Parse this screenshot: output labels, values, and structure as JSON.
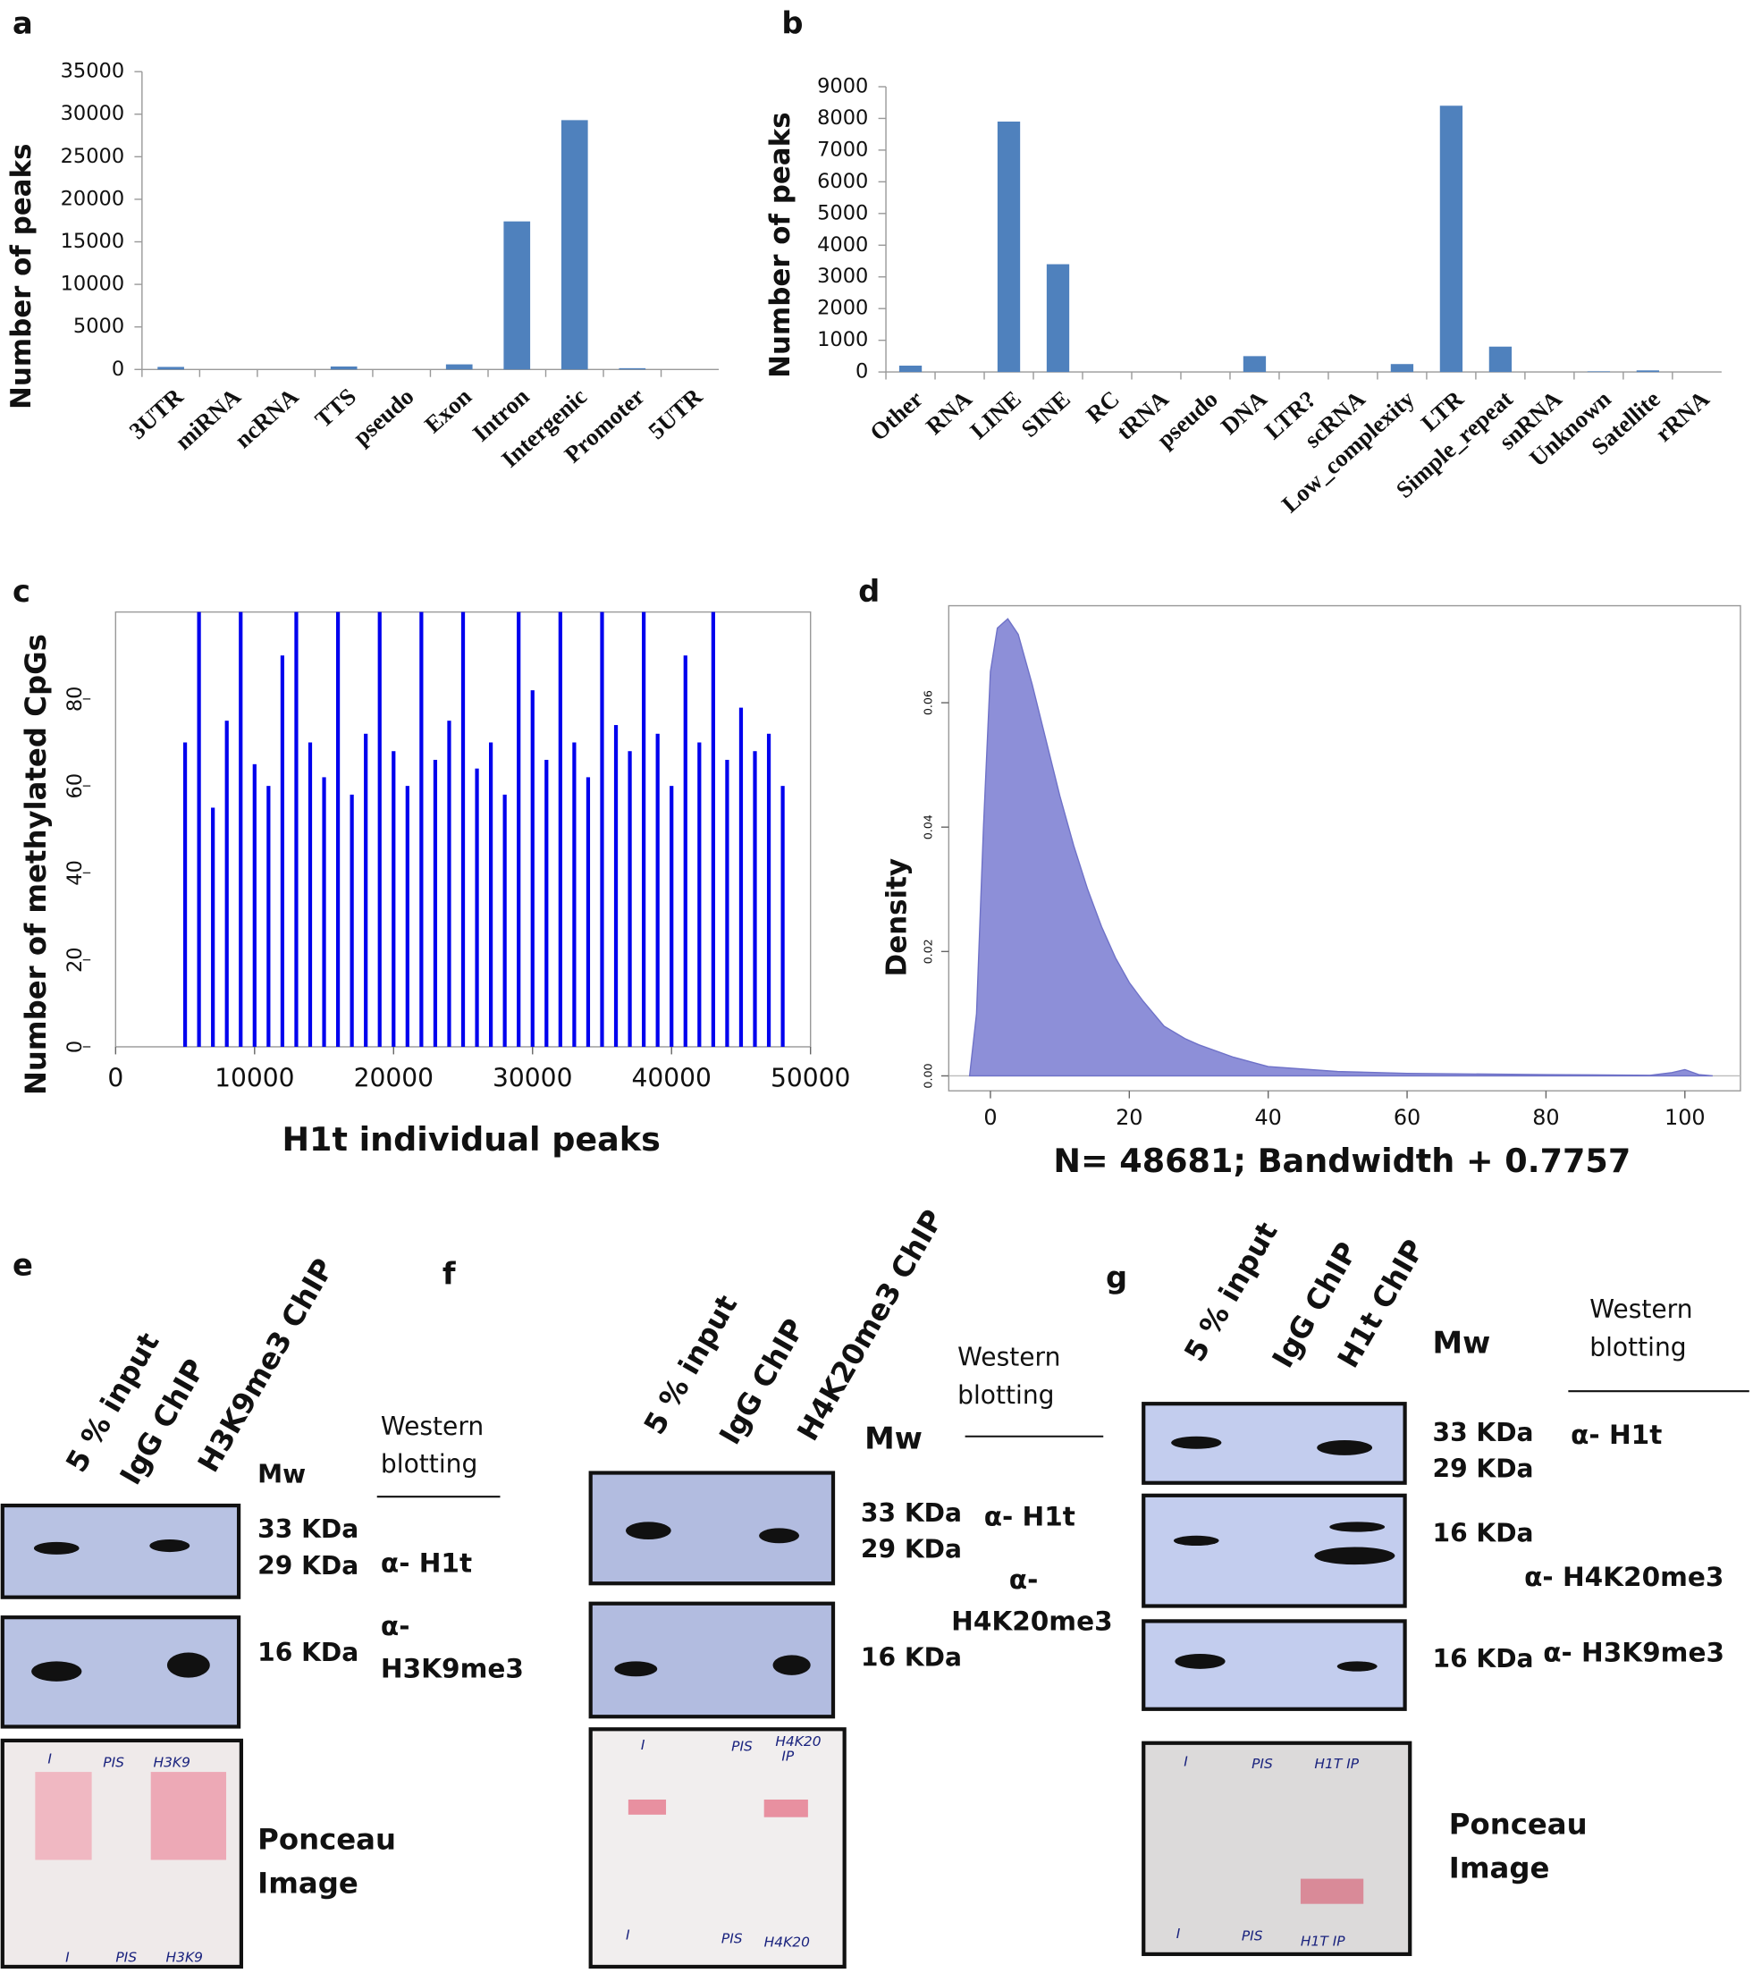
{
  "chart_data": [
    {
      "type": "bar",
      "label": "a",
      "ylabel": "Number of peaks",
      "color": "#4f81bd",
      "categories": [
        "3UTR",
        "miRNA",
        "ncRNA",
        "TTS",
        "pseudo",
        "Exon",
        "Intron",
        "Intergenic",
        "Promoter",
        "5UTR"
      ],
      "values": [
        300,
        0,
        0,
        350,
        0,
        600,
        17400,
        29300,
        150,
        0
      ],
      "ylim": [
        0,
        35000
      ],
      "yticks": [
        0,
        5000,
        10000,
        15000,
        20000,
        25000,
        30000,
        35000
      ]
    },
    {
      "type": "bar",
      "label": "b",
      "ylabel": "Number of peaks",
      "color": "#4f81bd",
      "categories": [
        "Other",
        "RNA",
        "LINE",
        "SINE",
        "RC",
        "tRNA",
        "pseudo",
        "DNA",
        "LTR?",
        "scRNA",
        "Low_complexity",
        "LTR",
        "Simple_repeat",
        "snRNA",
        "Unknown",
        "Satellite",
        "rRNA"
      ],
      "values": [
        200,
        0,
        7900,
        3400,
        0,
        0,
        0,
        500,
        0,
        0,
        250,
        8400,
        800,
        0,
        20,
        50,
        0
      ],
      "ylim": [
        0,
        9000
      ],
      "yticks": [
        0,
        1000,
        2000,
        3000,
        4000,
        5000,
        6000,
        7000,
        8000,
        9000
      ]
    },
    {
      "type": "bar",
      "label": "c",
      "xlabel": "H1t individual peaks",
      "ylabel": "Number of methylated CpGs",
      "color": "#0000ee",
      "x": [
        0,
        1000,
        2000,
        3000,
        4000,
        5000,
        6000,
        7000,
        8000,
        9000,
        10000,
        11000,
        12000,
        13000,
        14000,
        15000,
        16000,
        17000,
        18000,
        19000,
        20000,
        21000,
        22000,
        23000,
        24000,
        25000,
        26000,
        27000,
        28000,
        29000,
        30000,
        31000,
        32000,
        33000,
        34000,
        35000,
        36000,
        37000,
        38000,
        39000,
        40000,
        41000,
        42000,
        43000,
        44000,
        45000,
        46000,
        47000,
        48000
      ],
      "values": [
        0,
        0,
        0,
        0,
        0,
        70,
        100,
        55,
        75,
        100,
        65,
        60,
        90,
        100,
        70,
        62,
        100,
        58,
        72,
        100,
        68,
        60,
        100,
        66,
        75,
        100,
        64,
        70,
        58,
        100,
        82,
        66,
        100,
        70,
        62,
        100,
        74,
        68,
        100,
        72,
        60,
        90,
        70,
        100,
        66,
        78,
        68,
        72,
        60
      ],
      "xlim": [
        0,
        50000
      ],
      "xticks": [
        0,
        10000,
        20000,
        30000,
        40000,
        50000
      ],
      "ylim": [
        0,
        100
      ],
      "yticks": [
        0,
        20,
        40,
        60,
        80
      ]
    },
    {
      "type": "area",
      "label": "d",
      "xlabel": "N= 48681; Bandwidth + 0.7757",
      "ylabel": "Density",
      "color": "#8d8fd8",
      "x": [
        -3,
        -2,
        -1,
        0,
        1,
        2.5,
        4,
        6,
        8,
        10,
        12,
        14,
        16,
        18,
        20,
        22,
        25,
        28,
        30,
        35,
        40,
        50,
        60,
        80,
        95,
        98,
        100,
        102,
        104
      ],
      "values": [
        0,
        0.01,
        0.04,
        0.065,
        0.072,
        0.0735,
        0.071,
        0.063,
        0.054,
        0.045,
        0.037,
        0.03,
        0.024,
        0.019,
        0.015,
        0.012,
        0.008,
        0.006,
        0.005,
        0.003,
        0.0015,
        0.0007,
        0.0004,
        0.0002,
        0.0001,
        0.0005,
        0.001,
        0.0002,
        0
      ],
      "xlim": [
        -6,
        108
      ],
      "xticks": [
        0,
        20,
        40,
        60,
        80,
        100
      ],
      "ylim": [
        -0.0024,
        0.0756
      ],
      "yticks": [
        {
          "value": 0,
          "label": "0.00"
        },
        {
          "value": 0.02,
          "label": "0.02"
        },
        {
          "value": 0.04,
          "label": "0.04"
        },
        {
          "value": 0.06,
          "label": "0.06"
        }
      ]
    }
  ],
  "blots": [
    {
      "label": "e",
      "lanes": [
        "5 % input",
        "IgG ChIP",
        "H3K9me3 ChIP"
      ],
      "mw": "Mw",
      "western": [
        "Western",
        "blotting"
      ],
      "sizes": [
        "33 KDa",
        "29 KDa",
        "16 KDa"
      ],
      "antibodies": [
        "α- H1t",
        "α-",
        "H3K9me3"
      ],
      "ponceau": [
        "Ponceau",
        "Image"
      ],
      "handwriting": [
        "I",
        "PIS",
        "H3K9",
        "I",
        "PIS",
        "H3K9"
      ]
    },
    {
      "label": "f",
      "lanes": [
        "5 % input",
        "IgG ChIP",
        "H4K20me3 ChIP"
      ],
      "mw": "Mw",
      "western": [
        "Western",
        "blotting"
      ],
      "sizes": [
        "33 KDa",
        "29 KDa",
        "16 KDa"
      ],
      "antibodies": [
        "α- H1t",
        "α-",
        "H4K20me3"
      ],
      "ponceau": [],
      "handwriting": [
        "I",
        "PIS",
        "H4K20",
        "IP",
        "I",
        "PIS",
        "H4K20"
      ]
    },
    {
      "label": "g",
      "lanes": [
        "5 % input",
        "IgG ChIP",
        "H1t ChIP"
      ],
      "mw": "Mw",
      "western": [
        "Western",
        "blotting"
      ],
      "sizes": [
        "33 KDa",
        "29 KDa",
        "16 KDa",
        "16 KDa"
      ],
      "antibodies": [
        "α- H1t",
        "α- H4K20me3",
        "α- H3K9me3"
      ],
      "ponceau": [
        "Ponceau",
        "Image"
      ],
      "handwriting": [
        "I",
        "PIS",
        "H1T IP",
        "I",
        "PIS",
        "H1T IP"
      ]
    }
  ]
}
